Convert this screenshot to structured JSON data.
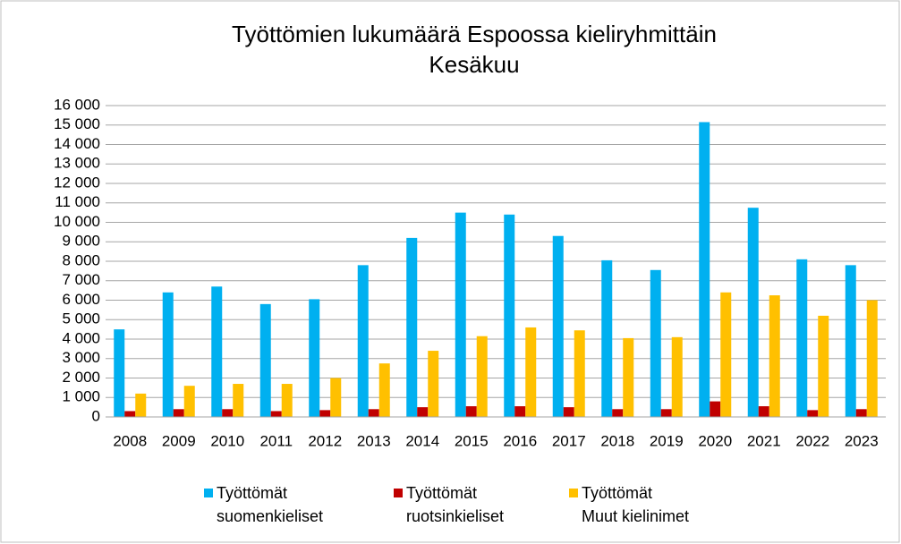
{
  "chart_data": {
    "type": "bar",
    "title": "Työttömien lukumäärä Espoossa kieliryhmittäin",
    "subtitle": "Kesäkuu",
    "categories": [
      "2008",
      "2009",
      "2010",
      "2011",
      "2012",
      "2013",
      "2014",
      "2015",
      "2016",
      "2017",
      "2018",
      "2019",
      "2020",
      "2021",
      "2022",
      "2023"
    ],
    "series": [
      {
        "name": "Työttömät\nsuomenkieliset",
        "color": "#00b0f0",
        "values": [
          4500,
          6400,
          6700,
          5800,
          6050,
          7800,
          9200,
          10500,
          10400,
          9300,
          8050,
          7550,
          15150,
          10750,
          8100,
          7800
        ]
      },
      {
        "name": "Työttömät\nruotsinkieliset",
        "color": "#c00000",
        "values": [
          300,
          400,
          400,
          300,
          350,
          400,
          500,
          550,
          550,
          500,
          400,
          400,
          800,
          550,
          350,
          400
        ]
      },
      {
        "name": "Työttömät\nMuut kielinimet",
        "color": "#ffc000",
        "values": [
          1200,
          1600,
          1700,
          1700,
          2000,
          2750,
          3400,
          4150,
          4600,
          4450,
          4050,
          4100,
          6400,
          6250,
          5200,
          6000
        ]
      }
    ],
    "ylim": [
      0,
      16000
    ],
    "yticks": [
      0,
      {
        "value": 1000,
        "label": "1 000"
      },
      {
        "value": 2000,
        "label": "2 000"
      },
      {
        "value": 3000,
        "label": "3 000"
      },
      {
        "value": 4000,
        "label": "4 000"
      },
      {
        "value": 5000,
        "label": "5 000"
      },
      {
        "value": 6000,
        "label": "6 000"
      },
      {
        "value": 7000,
        "label": "7 000"
      },
      {
        "value": 8000,
        "label": "8 000"
      },
      {
        "value": 9000,
        "label": "9 000"
      },
      {
        "value": 10000,
        "label": "10 000"
      },
      {
        "value": 11000,
        "label": "11 000"
      },
      {
        "value": 12000,
        "label": "12 000"
      },
      {
        "value": 13000,
        "label": "13 000"
      },
      {
        "value": 14000,
        "label": "14 000"
      },
      {
        "value": 15000,
        "label": "15 000"
      },
      {
        "value": 16000,
        "label": "16 000"
      }
    ],
    "grid": true,
    "legend": "bottom"
  }
}
